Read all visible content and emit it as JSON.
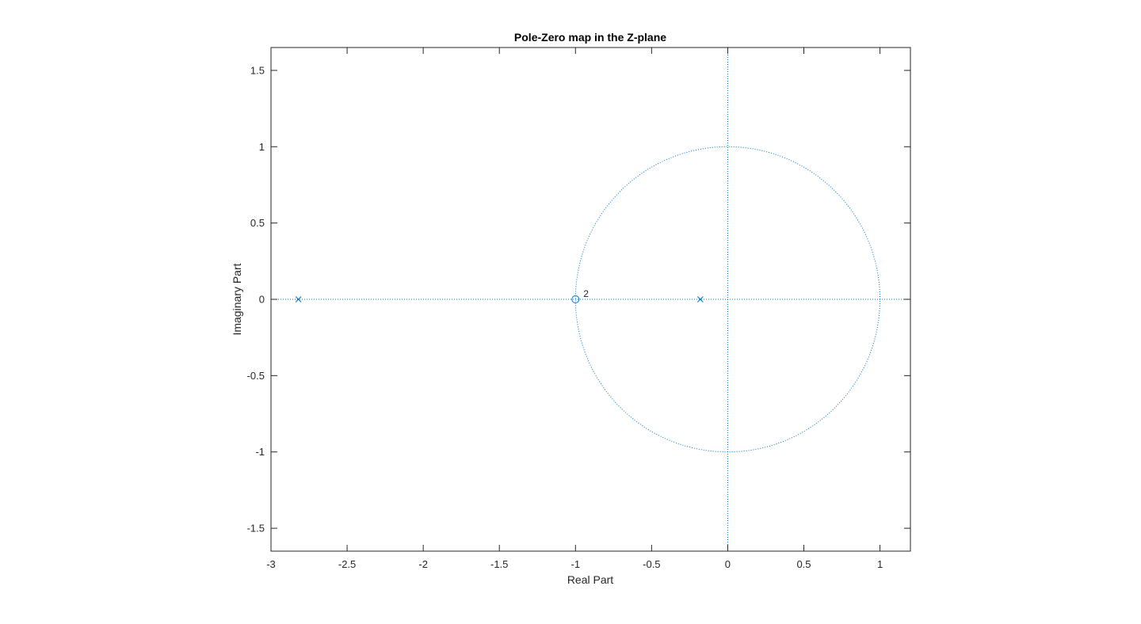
{
  "chart_data": {
    "type": "scatter",
    "title": "Pole-Zero map in the Z-plane",
    "xlabel": "Real Part",
    "ylabel": "Imaginary Part",
    "xlim": [
      -3.0,
      1.2
    ],
    "ylim": [
      -1.65,
      1.65
    ],
    "x_ticks": [
      -3,
      -2.5,
      -2,
      -1.5,
      -1,
      -0.5,
      0,
      0.5,
      1
    ],
    "x_tick_labels": [
      "-3",
      "-2.5",
      "-2",
      "-1.5",
      "-1",
      "-0.5",
      "0",
      "0.5",
      "1"
    ],
    "y_ticks": [
      1.5,
      1,
      0.5,
      0,
      -0.5,
      -1,
      -1.5
    ],
    "y_tick_labels": [
      "1.5",
      "1",
      "0.5",
      "0",
      "-0.5",
      "-1",
      "-1.5"
    ],
    "grid": false,
    "unit_circle": true,
    "series": [
      {
        "marker": "x",
        "points": [
          {
            "x": -2.82,
            "y": 0
          },
          {
            "x": -0.18,
            "y": 0
          }
        ]
      },
      {
        "marker": "o",
        "points": [
          {
            "x": -1.0,
            "y": 0
          }
        ]
      }
    ],
    "annotations": [
      {
        "text": "2",
        "x": -1.0,
        "y": 0
      }
    ],
    "colors": {
      "marker": "#0072BD",
      "axis": "#262626",
      "text": "#262626"
    }
  }
}
